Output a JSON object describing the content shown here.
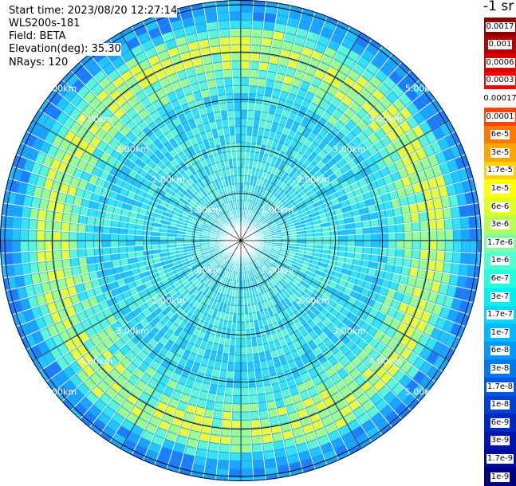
{
  "info": {
    "start_time": "Start time: 2023/08/20 12:27:14",
    "instrument": "WLS200s-181",
    "field": "Field: BETA",
    "elevation": "Elevation(deg): 35.30",
    "nrays": "NRays: 120"
  },
  "units_label": "-1 sr",
  "colorbar": {
    "labels": [
      "0.0017",
      "0.001",
      "0.0006",
      "0.0003",
      "0.00017",
      "0.0001",
      "6e-5",
      "3e-5",
      "1.7e-5",
      "1e-5",
      "6e-6",
      "3e-6",
      "1.7e-6",
      "1e-6",
      "6e-7",
      "3e-7",
      "1.7e-7",
      "1e-7",
      "6e-8",
      "3e-8",
      "1.7e-8",
      "1e-8",
      "6e-9",
      "3e-9",
      "1.7e-9",
      "1e-9"
    ],
    "colors": [
      "#8b0000",
      "#b40000",
      "#dc0000",
      "#ff0000",
      "#ffffff",
      "#ff4400",
      "#ff7a00",
      "#ffa500",
      "#ffd200",
      "#ffff00",
      "#e0ff20",
      "#b4ff50",
      "#80ffa0",
      "#50ffd0",
      "#20ffe0",
      "#00f0f0",
      "#00d8ff",
      "#00b8ff",
      "#0098ff",
      "#0078f0",
      "#0058e0",
      "#0040d0",
      "#0028c0",
      "#0014b0",
      "#0008a0",
      "#000080"
    ]
  },
  "range_rings": [
    {
      "label": "1.00km"
    },
    {
      "label": "2.00km"
    },
    {
      "label": "3.00km"
    },
    {
      "label": "4.00km"
    },
    {
      "label": "5.00km"
    }
  ]
}
